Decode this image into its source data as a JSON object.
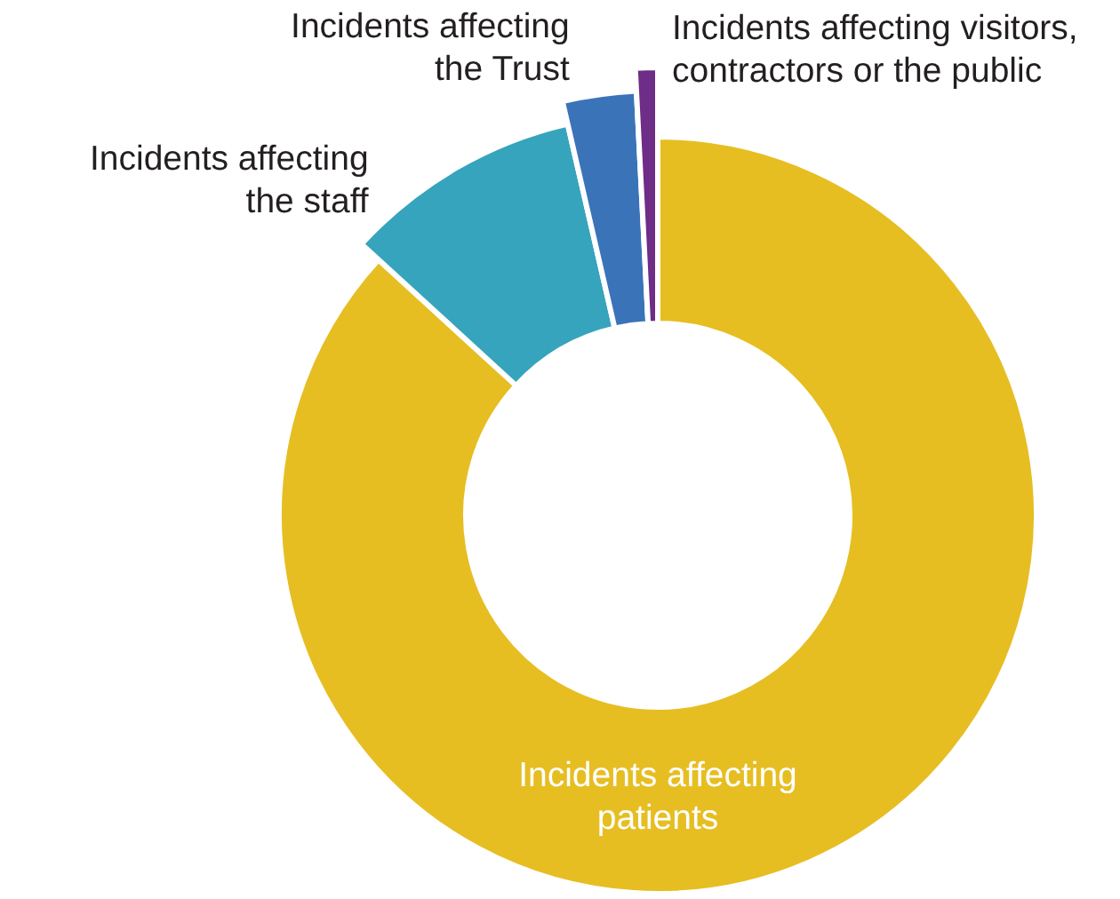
{
  "chart_data": {
    "type": "donut",
    "categories": [
      "Incidents affecting\npatients",
      "Incidents affecting\nthe staff",
      "Incidents affecting\nthe Trust",
      "Incidents affecting visitors,\ncontractors or the public"
    ],
    "values": [
      86.8,
      9.6,
      2.8,
      0.8
    ],
    "colors": [
      "#e6be22",
      "#36a4bc",
      "#3b73b9",
      "#6e2d86"
    ]
  }
}
